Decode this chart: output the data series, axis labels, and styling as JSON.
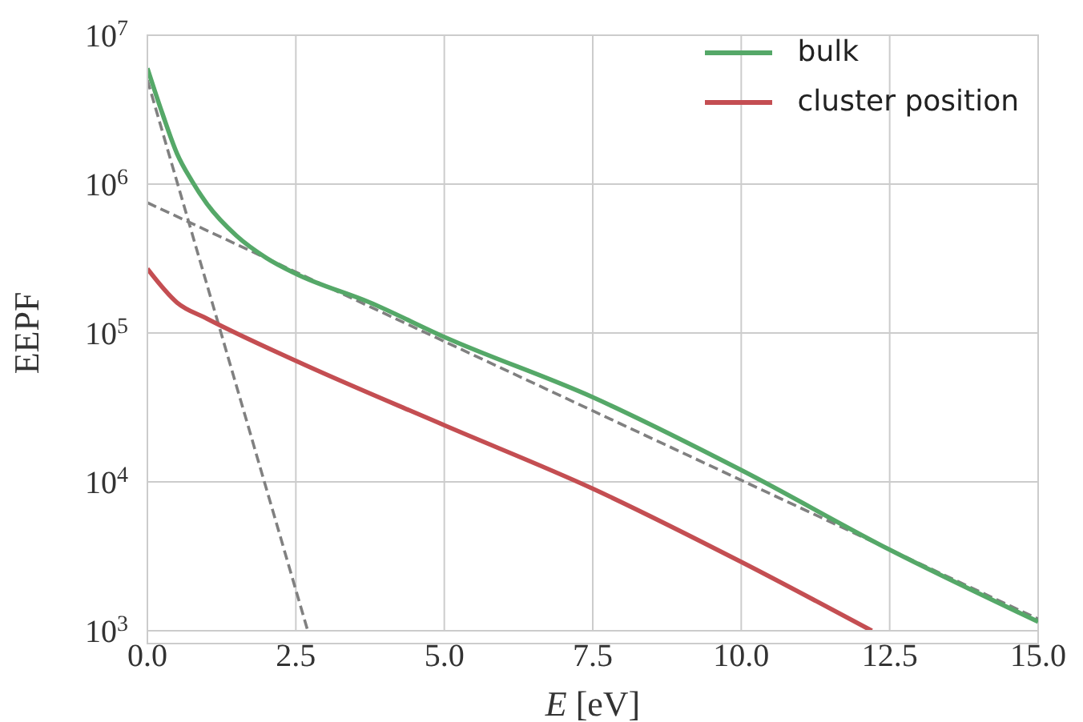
{
  "chart_data": {
    "type": "line",
    "xlabel": "E [eV]",
    "ylabel": "EEPF",
    "log": "y",
    "grid": true,
    "legend": "top right",
    "xlim": [
      0,
      15
    ],
    "ylim": [
      1000,
      10000000
    ],
    "xticks": [
      {
        "value": 0,
        "label": "0.0"
      },
      2.5,
      {
        "value": 5,
        "label": "5.0"
      },
      7.5,
      {
        "value": 10,
        "label": "10.0"
      },
      12.5,
      {
        "value": 15,
        "label": "15.0"
      }
    ],
    "yticks": [
      {
        "value": 1000,
        "label": "10$^{3}$"
      },
      {
        "value": 10000,
        "label": "10$^{4}$"
      },
      {
        "value": 100000,
        "label": "10$^{5}$"
      },
      {
        "value": 1000000,
        "label": "10$^{6}$"
      },
      {
        "value": 10000000,
        "label": "10$^{7}$"
      }
    ],
    "series": [
      {
        "type": "line",
        "line_style": "dashed",
        "color": "#808080",
        "x": [
          0,
          2.7
        ],
        "values": [
          5000000,
          1000
        ]
      },
      {
        "type": "line",
        "line_style": "dashed",
        "color": "#808080",
        "x": [
          0,
          15
        ],
        "values": [
          750000,
          1200
        ]
      },
      {
        "name": "bulk",
        "color": "#55a868",
        "line_style": "solid",
        "x": [
          0,
          0.25,
          0.5,
          0.75,
          1,
          1.5,
          2,
          2.5,
          3.75,
          5,
          7.5,
          10,
          12.5,
          15
        ],
        "values": [
          6000000,
          3000000,
          1600000,
          1050000,
          740000,
          450000,
          320000,
          250000,
          160000,
          94000,
          37000,
          12000,
          3500,
          1150
        ]
      },
      {
        "name": "cluster position",
        "color": "#c44e52",
        "line_style": "solid",
        "x": [
          0,
          0.5,
          1,
          2.5,
          5,
          7.5,
          10,
          12.2
        ],
        "values": [
          270000,
          160000,
          125000,
          65000,
          24000,
          9000,
          2900,
          1000
        ]
      }
    ]
  }
}
